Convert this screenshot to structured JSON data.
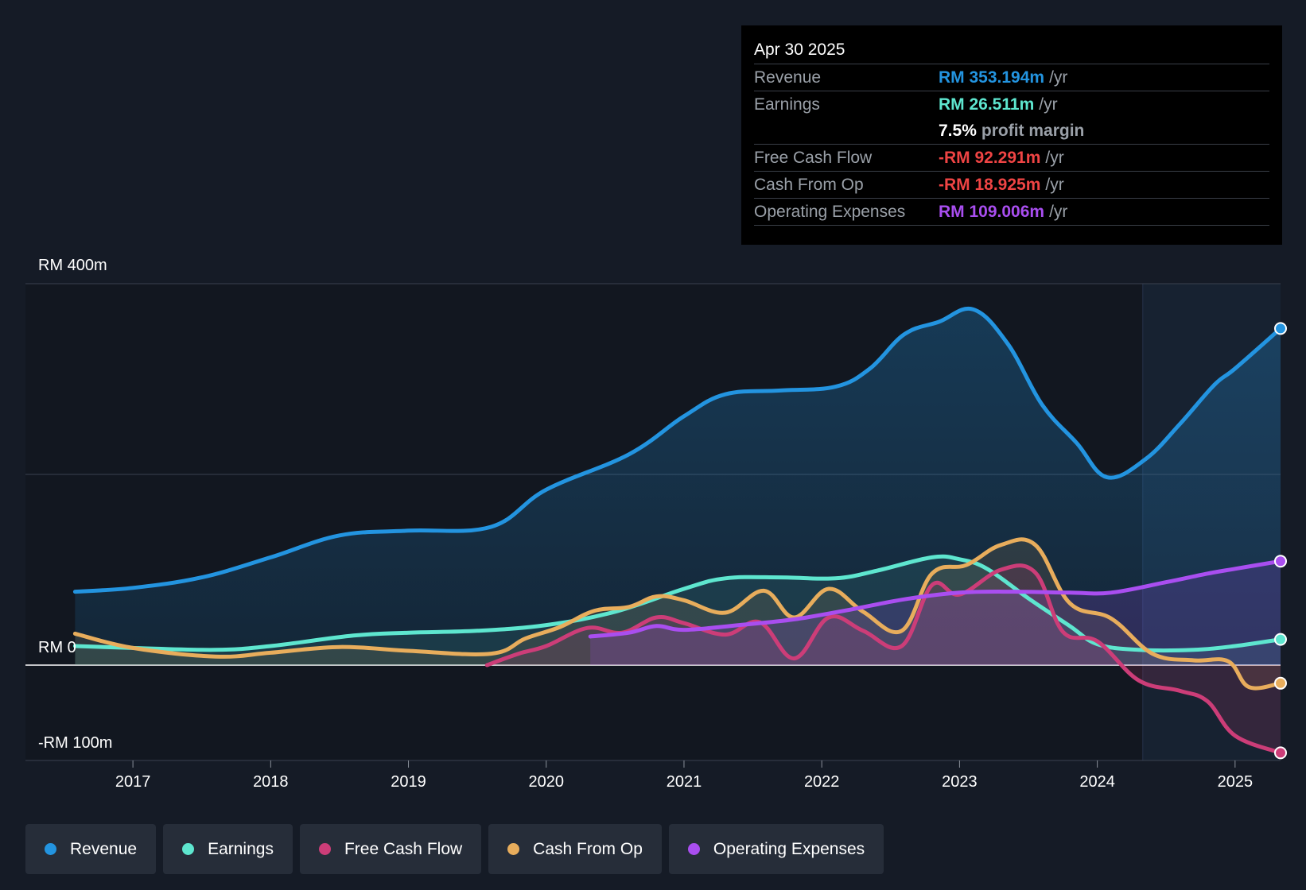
{
  "colors": {
    "revenue": "#2394e0",
    "earnings": "#5ee6cf",
    "fcf": "#cc3d78",
    "cfo": "#e8ad5c",
    "opex": "#a94ef0",
    "negative": "#ef4444"
  },
  "tooltip": {
    "date": "Apr 30 2025",
    "rows": [
      {
        "label": "Revenue",
        "value": "RM 353.194m",
        "unit": "/yr"
      },
      {
        "label": "Earnings",
        "value": "RM 26.511m",
        "unit": "/yr"
      },
      {
        "margin_value": "7.5%",
        "margin_label": "profit margin"
      },
      {
        "label": "Free Cash Flow",
        "value": "-RM 92.291m",
        "unit": "/yr"
      },
      {
        "label": "Cash From Op",
        "value": "-RM 18.925m",
        "unit": "/yr"
      },
      {
        "label": "Operating Expenses",
        "value": "RM 109.006m",
        "unit": "/yr"
      }
    ]
  },
  "legend": [
    "Revenue",
    "Earnings",
    "Free Cash Flow",
    "Cash From Op",
    "Operating Expenses"
  ],
  "chart_data": {
    "type": "line",
    "title": "",
    "xlabel": "",
    "ylabel": "",
    "y_axis_labels": [
      "RM 400m",
      "RM 0",
      "-RM 100m"
    ],
    "ylim": [
      -100,
      400
    ],
    "xlim": [
      2016.22,
      2025.33
    ],
    "x_ticks": [
      2017,
      2018,
      2019,
      2020,
      2021,
      2022,
      2023,
      2024,
      2025
    ],
    "x_tick_labels": [
      "2017",
      "2018",
      "2019",
      "2020",
      "2021",
      "2022",
      "2023",
      "2024",
      "2025"
    ],
    "gridlines_y": [
      400,
      200,
      0,
      -100
    ],
    "forecast_start_x": 2024.33,
    "series": [
      {
        "name": "Revenue",
        "key": "revenue",
        "x": [
          2016.58,
          2017.0,
          2017.5,
          2018.0,
          2018.5,
          2019.0,
          2019.6,
          2020.0,
          2020.6,
          2021.0,
          2021.3,
          2021.7,
          2022.1,
          2022.35,
          2022.6,
          2022.85,
          2023.1,
          2023.35,
          2023.6,
          2023.85,
          2024.07,
          2024.35,
          2024.6,
          2024.85,
          2025.0,
          2025.33
        ],
        "values": [
          77,
          81,
          92,
          113,
          136,
          141,
          145,
          184,
          221,
          261,
          284,
          288,
          292,
          311,
          347,
          360,
          373,
          337,
          273,
          233,
          197,
          216,
          253,
          294,
          311,
          353
        ]
      },
      {
        "name": "Earnings",
        "key": "earnings",
        "x": [
          2016.58,
          2017.0,
          2017.6,
          2018.0,
          2018.6,
          2019.0,
          2019.5,
          2020.0,
          2020.5,
          2021.0,
          2021.3,
          2021.7,
          2022.1,
          2022.4,
          2022.8,
          2023.0,
          2023.2,
          2023.5,
          2023.8,
          2024.0,
          2024.3,
          2024.7,
          2025.0,
          2025.33
        ],
        "values": [
          20,
          18,
          16,
          20,
          31,
          34,
          36,
          42,
          56,
          80,
          91,
          92,
          91,
          99,
          113,
          111,
          101,
          70,
          41,
          22,
          16,
          16,
          20,
          27
        ]
      },
      {
        "name": "Free Cash Flow",
        "key": "fcf",
        "x": [
          2019.57,
          2019.8,
          2020.0,
          2020.3,
          2020.55,
          2020.8,
          2021.0,
          2021.3,
          2021.55,
          2021.8,
          2022.05,
          2022.3,
          2022.58,
          2022.8,
          2023.0,
          2023.3,
          2023.55,
          2023.75,
          2024.0,
          2024.3,
          2024.6,
          2024.8,
          2025.0,
          2025.33
        ],
        "values": [
          0,
          12,
          20,
          39,
          34,
          50,
          44,
          32,
          45,
          7,
          50,
          36,
          20,
          84,
          74,
          100,
          97,
          35,
          25,
          -16,
          -27,
          -38,
          -74,
          -92
        ]
      },
      {
        "name": "Cash From Op",
        "key": "cfo",
        "x": [
          2016.58,
          2017.0,
          2017.6,
          2018.0,
          2018.5,
          2019.0,
          2019.6,
          2019.85,
          2020.1,
          2020.35,
          2020.6,
          2020.8,
          2021.0,
          2021.3,
          2021.58,
          2021.8,
          2022.05,
          2022.3,
          2022.58,
          2022.8,
          2023.05,
          2023.3,
          2023.55,
          2023.8,
          2024.1,
          2024.4,
          2024.7,
          2024.95,
          2025.1,
          2025.33
        ],
        "values": [
          33,
          18,
          9,
          13,
          19,
          15,
          12,
          28,
          40,
          57,
          61,
          72,
          68,
          55,
          78,
          50,
          80,
          56,
          36,
          96,
          105,
          126,
          126,
          65,
          49,
          12,
          5,
          4,
          -23,
          -19
        ]
      },
      {
        "name": "Operating Expenses",
        "key": "opex",
        "x": [
          2020.32,
          2020.6,
          2020.8,
          2021.0,
          2021.4,
          2021.8,
          2022.2,
          2022.6,
          2023.0,
          2023.4,
          2023.8,
          2024.1,
          2024.5,
          2024.8,
          2025.0,
          2025.33
        ],
        "values": [
          30,
          34,
          41,
          37,
          42,
          48,
          58,
          69,
          76,
          77,
          76,
          76,
          87,
          96,
          101,
          109
        ]
      }
    ]
  }
}
